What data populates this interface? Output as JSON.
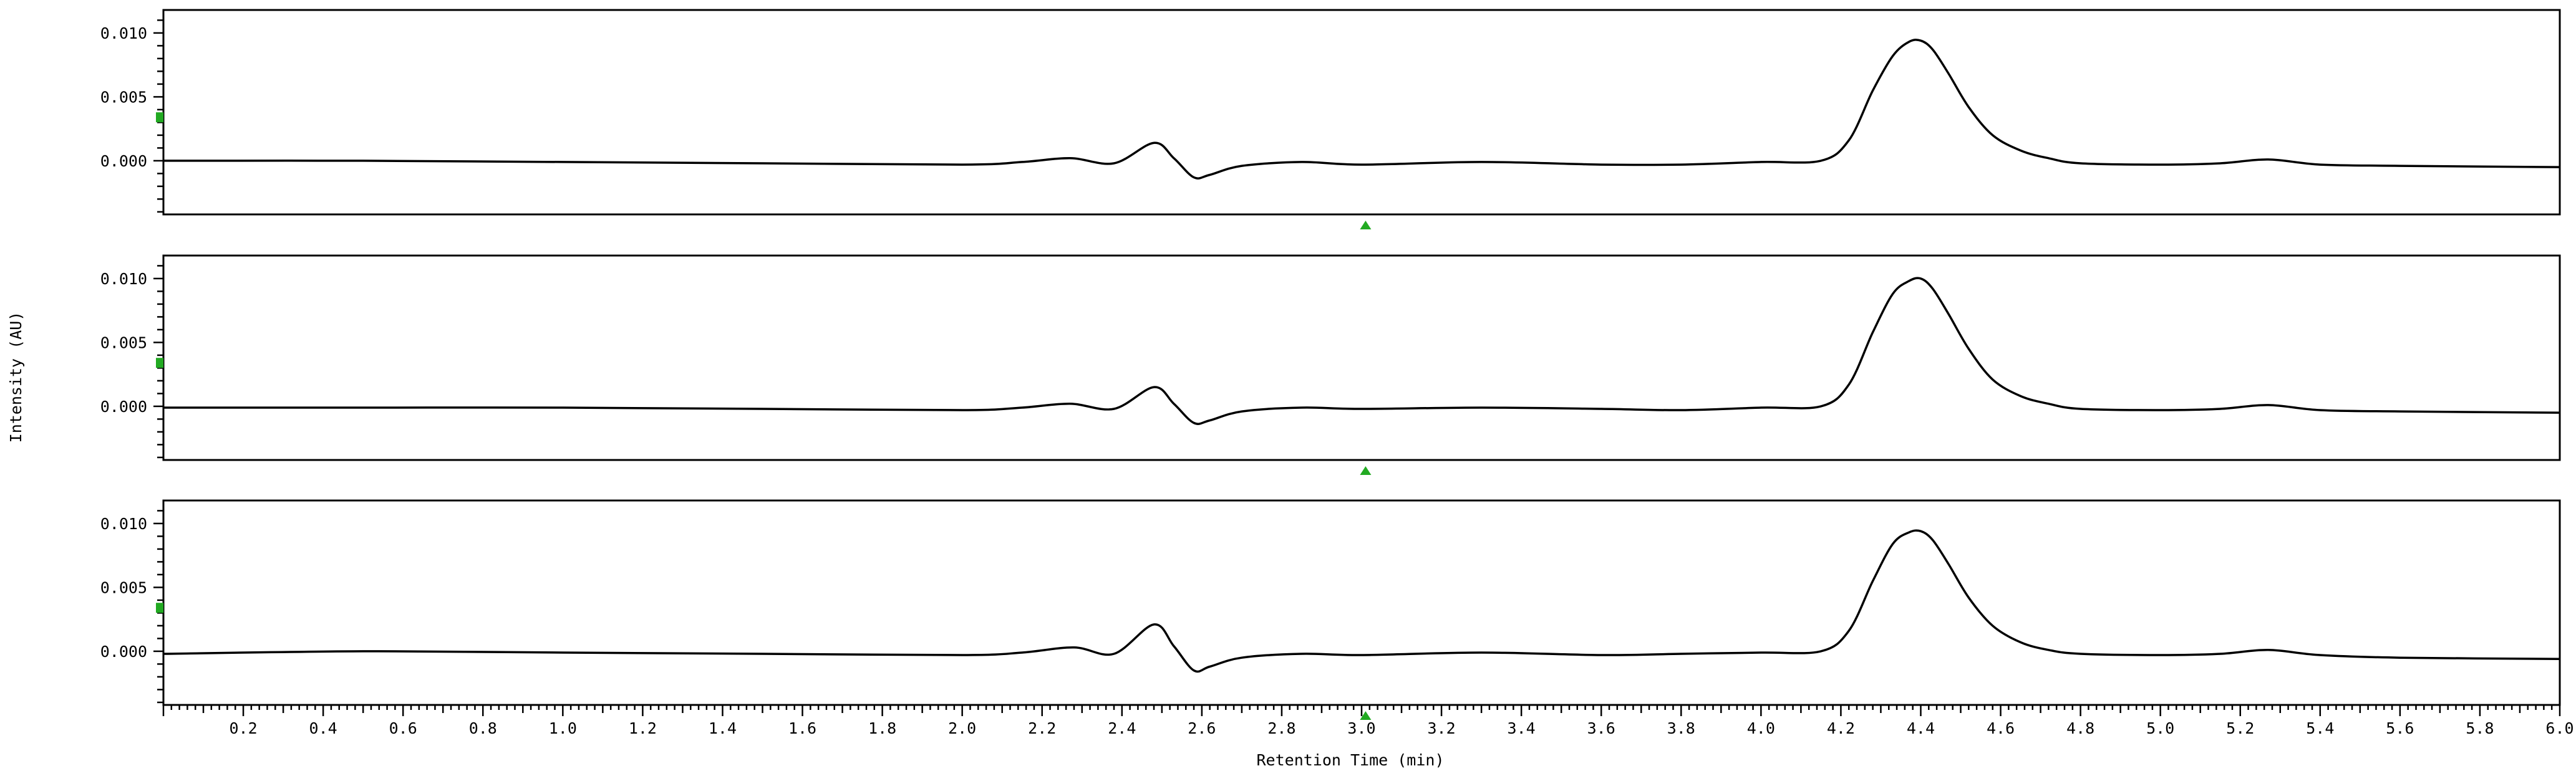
{
  "chart_data": {
    "type": "line",
    "layout": "stacked-panels",
    "ylabel": "Intensity (AU)",
    "xlabel": "Retention Time (min)",
    "xlim": [
      0.0,
      6.0
    ],
    "x_ticks": [
      0.2,
      0.4,
      0.6,
      0.8,
      1.0,
      1.2,
      1.4,
      1.6,
      1.8,
      2.0,
      2.2,
      2.4,
      2.6,
      2.8,
      3.0,
      3.2,
      3.4,
      3.6,
      3.8,
      4.0,
      4.2,
      4.4,
      4.6,
      4.8,
      5.0,
      5.2,
      5.4,
      5.6,
      5.8,
      6.0
    ],
    "x_tick_labels": [
      "0.2",
      "0.4",
      "0.6",
      "0.8",
      "1.0",
      "1.2",
      "1.4",
      "1.6",
      "1.8",
      "2.0",
      "2.2",
      "2.4",
      "2.6",
      "2.8",
      "3.0",
      "3.2",
      "3.4",
      "3.6",
      "3.8",
      "4.0",
      "4.2",
      "4.4",
      "4.6",
      "4.8",
      "5.0",
      "5.2",
      "5.4",
      "5.6",
      "5.8",
      "6.0"
    ],
    "y_ticks": [
      0.0,
      0.005,
      0.01
    ],
    "y_tick_labels": [
      "0.000",
      "0.005",
      "0.010"
    ],
    "marker_color": "#22aa22",
    "line_color": "#000000",
    "panels": [
      {
        "ylim": [
          -0.0042,
          0.0118
        ],
        "marker_time": 3.01,
        "series": [
          {
            "x": [
              0.0,
              0.5,
              1.0,
              1.5,
              2.0,
              2.15,
              2.27,
              2.38,
              2.48,
              2.53,
              2.58,
              2.62,
              2.7,
              2.85,
              3.0,
              3.3,
              3.6,
              3.8,
              4.0,
              4.15,
              4.22,
              4.28,
              4.33,
              4.37,
              4.4,
              4.43,
              4.47,
              4.52,
              4.58,
              4.65,
              4.72,
              4.8,
              5.0,
              5.15,
              5.27,
              5.4,
              5.6,
              6.0
            ],
            "y": [
              0.0,
              0.0,
              -0.0001,
              -0.0002,
              -0.0003,
              -0.0001,
              0.0002,
              -0.0002,
              0.0014,
              0.0002,
              -0.0013,
              -0.0011,
              -0.0004,
              -0.0001,
              -0.0003,
              -0.0001,
              -0.0003,
              -0.0003,
              -0.0001,
              0.0,
              0.0016,
              0.0055,
              0.0082,
              0.0093,
              0.0094,
              0.0087,
              0.0068,
              0.0042,
              0.002,
              0.0008,
              0.0002,
              -0.0002,
              -0.0003,
              -0.0002,
              0.0001,
              -0.0003,
              -0.0004,
              -0.0005
            ]
          }
        ]
      },
      {
        "ylim": [
          -0.0042,
          0.0118
        ],
        "marker_time": 3.01,
        "series": [
          {
            "x": [
              0.0,
              0.5,
              1.0,
              1.5,
              2.0,
              2.15,
              2.27,
              2.38,
              2.48,
              2.53,
              2.58,
              2.62,
              2.7,
              2.85,
              3.0,
              3.3,
              3.6,
              3.8,
              4.0,
              4.15,
              4.22,
              4.28,
              4.33,
              4.37,
              4.4,
              4.43,
              4.47,
              4.52,
              4.58,
              4.65,
              4.72,
              4.8,
              5.0,
              5.15,
              5.27,
              5.4,
              5.6,
              6.0
            ],
            "y": [
              -0.0001,
              -0.0001,
              -0.0001,
              -0.0002,
              -0.0003,
              -0.0001,
              0.0002,
              -0.0002,
              0.0015,
              0.0002,
              -0.0013,
              -0.0011,
              -0.0004,
              -0.0001,
              -0.0002,
              -0.0001,
              -0.0002,
              -0.0003,
              -0.0001,
              0.0,
              0.0017,
              0.0058,
              0.0088,
              0.0098,
              0.01,
              0.0092,
              0.0072,
              0.0045,
              0.0021,
              0.0008,
              0.0002,
              -0.0002,
              -0.0003,
              -0.0002,
              0.0001,
              -0.0003,
              -0.0004,
              -0.0005
            ]
          }
        ]
      },
      {
        "ylim": [
          -0.0042,
          0.0118
        ],
        "marker_time": 3.01,
        "series": [
          {
            "x": [
              0.0,
              0.5,
              1.0,
              1.5,
              2.0,
              2.15,
              2.28,
              2.38,
              2.48,
              2.53,
              2.58,
              2.62,
              2.7,
              2.85,
              3.0,
              3.3,
              3.6,
              3.8,
              4.0,
              4.15,
              4.22,
              4.28,
              4.33,
              4.37,
              4.4,
              4.43,
              4.47,
              4.52,
              4.58,
              4.65,
              4.72,
              4.8,
              5.0,
              5.15,
              5.27,
              5.4,
              5.6,
              6.0
            ],
            "y": [
              -0.0002,
              0.0,
              -0.0001,
              -0.0002,
              -0.0003,
              -0.0001,
              0.0003,
              -0.0002,
              0.0021,
              0.0004,
              -0.0015,
              -0.0012,
              -0.0005,
              -0.0002,
              -0.0003,
              -0.0001,
              -0.0003,
              -0.0002,
              -0.0001,
              0.0,
              0.0016,
              0.0055,
              0.0084,
              0.0093,
              0.0094,
              0.0087,
              0.0068,
              0.0042,
              0.002,
              0.0007,
              0.0001,
              -0.0002,
              -0.0003,
              -0.0002,
              0.0001,
              -0.0003,
              -0.0005,
              -0.0006
            ]
          }
        ]
      }
    ]
  }
}
